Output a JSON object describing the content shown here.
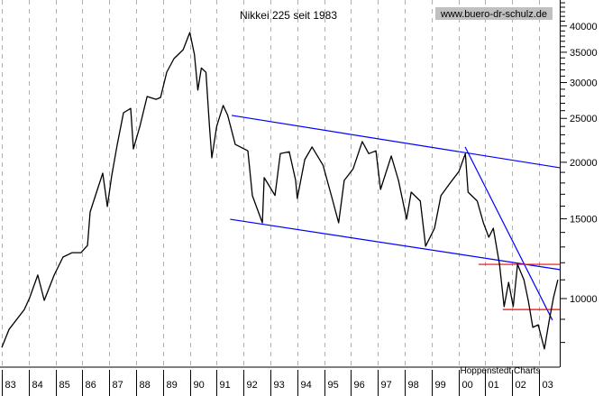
{
  "chart_data": {
    "type": "line",
    "title": "Nikkei 225 seit 1983",
    "source_url": "www.buero-dr-schulz.de",
    "credit": "Hoppenstedt Charts",
    "xlabel": "",
    "ylabel": "",
    "y_scale": "log",
    "ylim": [
      7300,
      45600
    ],
    "xlim": [
      1983.0,
      2003.75
    ],
    "grid": "vertical dashed at year starts",
    "x_tick_labels": [
      "83",
      "84",
      "85",
      "86",
      "87",
      "88",
      "89",
      "90",
      "91",
      "92",
      "93",
      "94",
      "95",
      "96",
      "97",
      "98",
      "99",
      "00",
      "01",
      "02",
      "03"
    ],
    "y_tick_labels": [
      10000,
      15000,
      20000,
      25000,
      30000,
      35000,
      40000
    ],
    "series": [
      {
        "color": "#000000",
        "points": [
          [
            1983.0,
            7800
          ],
          [
            1983.27,
            8550
          ],
          [
            1983.84,
            9460
          ],
          [
            1984.04,
            10050
          ],
          [
            1984.34,
            11270
          ],
          [
            1984.58,
            9910
          ],
          [
            1984.95,
            11270
          ],
          [
            1985.28,
            12350
          ],
          [
            1985.62,
            12630
          ],
          [
            1985.95,
            12630
          ],
          [
            1986.19,
            13100
          ],
          [
            1986.29,
            15530
          ],
          [
            1986.56,
            17420
          ],
          [
            1986.76,
            18920
          ],
          [
            1986.93,
            15970
          ],
          [
            1987.09,
            18660
          ],
          [
            1987.3,
            21900
          ],
          [
            1987.53,
            25730
          ],
          [
            1987.8,
            26300
          ],
          [
            1987.9,
            21400
          ],
          [
            1988.14,
            24020
          ],
          [
            1988.41,
            27940
          ],
          [
            1988.74,
            27550
          ],
          [
            1988.91,
            27800
          ],
          [
            1989.14,
            31630
          ],
          [
            1989.41,
            33880
          ],
          [
            1989.75,
            35460
          ],
          [
            1990.0,
            38700
          ],
          [
            1990.17,
            34600
          ],
          [
            1990.3,
            28860
          ],
          [
            1990.43,
            32300
          ],
          [
            1990.6,
            31600
          ],
          [
            1990.73,
            24000
          ],
          [
            1990.82,
            20450
          ],
          [
            1991.0,
            24000
          ],
          [
            1991.24,
            26700
          ],
          [
            1991.41,
            25400
          ],
          [
            1991.69,
            21900
          ],
          [
            1992.16,
            21200
          ],
          [
            1992.33,
            16880
          ],
          [
            1992.7,
            14700
          ],
          [
            1992.77,
            18500
          ],
          [
            1993.17,
            16900
          ],
          [
            1993.37,
            20900
          ],
          [
            1993.7,
            21100
          ],
          [
            1993.94,
            18240
          ],
          [
            1994.0,
            16640
          ],
          [
            1994.28,
            20270
          ],
          [
            1994.55,
            21620
          ],
          [
            1994.96,
            19700
          ],
          [
            1995.3,
            16640
          ],
          [
            1995.54,
            14700
          ],
          [
            1995.75,
            18240
          ],
          [
            1996.08,
            19350
          ],
          [
            1996.42,
            22220
          ],
          [
            1996.66,
            20900
          ],
          [
            1996.93,
            21200
          ],
          [
            1997.1,
            17420
          ],
          [
            1997.5,
            20650
          ],
          [
            1997.77,
            18240
          ],
          [
            1998.07,
            14970
          ],
          [
            1998.24,
            17180
          ],
          [
            1998.58,
            16420
          ],
          [
            1998.78,
            13050
          ],
          [
            1999.11,
            14300
          ],
          [
            1999.35,
            16880
          ],
          [
            1999.69,
            18000
          ],
          [
            2000.02,
            19090
          ],
          [
            2000.26,
            20900
          ],
          [
            2000.36,
            17180
          ],
          [
            2000.7,
            16420
          ],
          [
            2000.93,
            14700
          ],
          [
            2001.13,
            13660
          ],
          [
            2001.3,
            14300
          ],
          [
            2001.53,
            11900
          ],
          [
            2001.7,
            9600
          ],
          [
            2001.87,
            10860
          ],
          [
            2002.04,
            9600
          ],
          [
            2002.2,
            11900
          ],
          [
            2002.44,
            11000
          ],
          [
            2002.6,
            9900
          ],
          [
            2002.77,
            8640
          ],
          [
            2002.97,
            8750
          ],
          [
            2003.2,
            7740
          ],
          [
            2003.37,
            8870
          ],
          [
            2003.54,
            10050
          ],
          [
            2003.7,
            11000
          ]
        ]
      }
    ],
    "annotations": [
      {
        "kind": "trendline",
        "color": "#0000ff",
        "from": [
          1991.56,
          25380
        ],
        "to": [
          2003.8,
          19440
        ]
      },
      {
        "kind": "trendline",
        "color": "#0000ff",
        "from": [
          1991.5,
          14970
        ],
        "to": [
          2003.8,
          11580
        ]
      },
      {
        "kind": "trendline",
        "color": "#0000ff",
        "from": [
          2000.25,
          21620
        ],
        "to": [
          2003.5,
          8960
        ]
      },
      {
        "kind": "level",
        "color": "#ff0000",
        "from": [
          2000.75,
          11900
        ],
        "to": [
          2003.8,
          11900
        ]
      },
      {
        "kind": "level",
        "color": "#ff0000",
        "from": [
          2001.65,
          9460
        ],
        "to": [
          2003.8,
          9460
        ]
      }
    ]
  }
}
